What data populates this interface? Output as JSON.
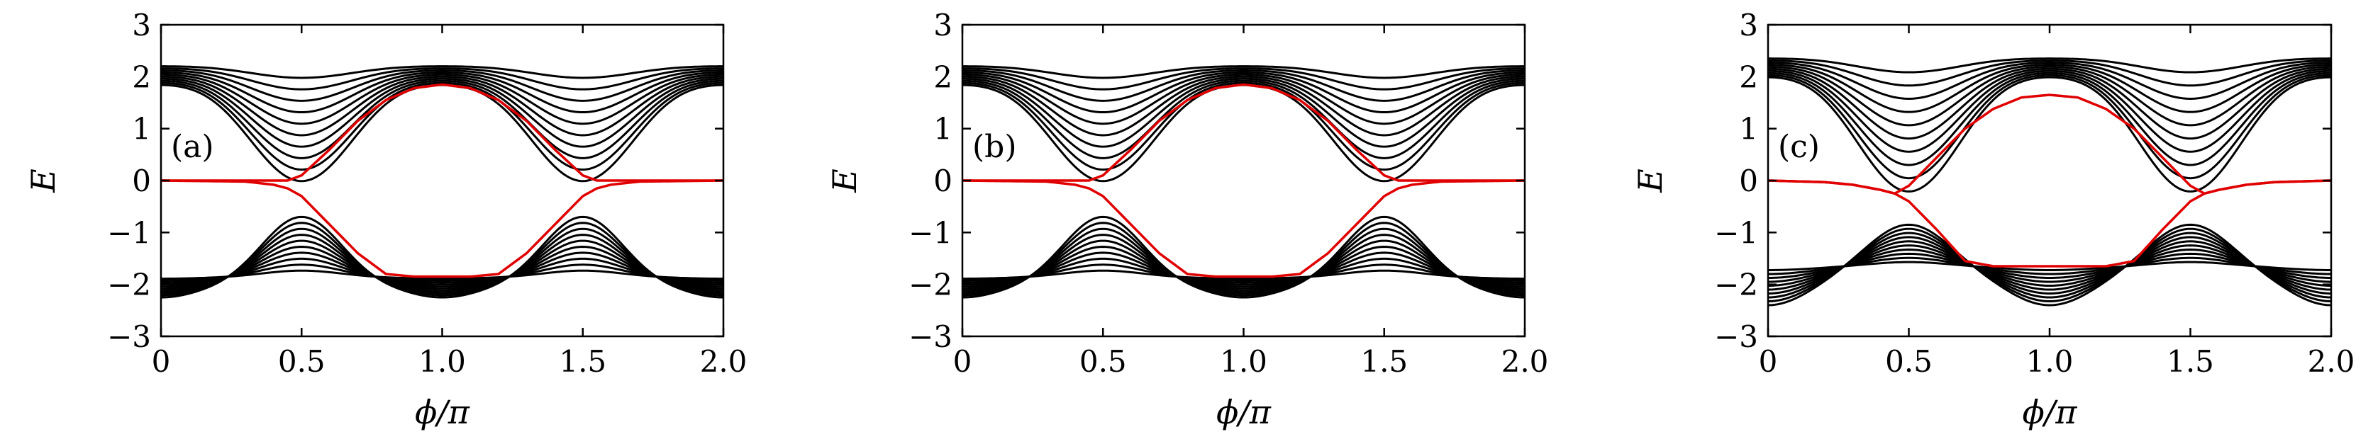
{
  "figure": {
    "panels": [
      {
        "label": "(a)",
        "xlabel": "ϕ/π",
        "ylabel": "E"
      },
      {
        "label": "(b)",
        "xlabel": "ϕ/π",
        "ylabel": "E"
      },
      {
        "label": "(c)",
        "xlabel": "ϕ/π",
        "ylabel": "E"
      }
    ]
  },
  "chart_data": [
    {
      "type": "line",
      "panel_label": "(a)",
      "xlabel": "ϕ/π",
      "ylabel": "E",
      "xlim": [
        0,
        2
      ],
      "ylim": [
        -3,
        3
      ],
      "xticks": [
        "0",
        "0.5",
        "1.0",
        "1.5",
        "2.0"
      ],
      "yticks": [
        "3",
        "2",
        "1",
        "0",
        "−1",
        "−2",
        "−3"
      ],
      "colors": {
        "bands": "#000000",
        "edge_states": "#e00000"
      },
      "upper_bands": {
        "count": 10,
        "top_energy": 2.2,
        "min_energy_at_0.5": 0.35,
        "energy_at_1.0": 1.85
      },
      "lower_bands": {
        "count": 10,
        "flat_energy": -1.85,
        "max_energy_at_0.5": -0.7,
        "bottom_energy_at_1.0": -2.25
      },
      "edge_states": {
        "x": [
          0,
          0.3,
          0.4,
          0.45,
          0.5,
          0.6,
          0.7,
          0.8,
          0.9,
          1.0,
          1.1,
          1.2,
          1.3,
          1.4,
          1.5,
          1.55,
          1.6,
          1.7,
          2.0
        ],
        "upper": [
          0,
          0,
          0,
          0,
          0.1,
          0.6,
          1.15,
          1.55,
          1.78,
          1.85,
          1.78,
          1.55,
          1.15,
          0.6,
          0.1,
          0,
          0,
          0,
          0
        ],
        "lower": [
          0,
          -0.02,
          -0.08,
          -0.15,
          -0.3,
          -0.85,
          -1.4,
          -1.8,
          -1.85,
          -1.85,
          -1.85,
          -1.8,
          -1.4,
          -0.85,
          -0.3,
          -0.15,
          -0.08,
          -0.02,
          0
        ]
      }
    },
    {
      "type": "line",
      "panel_label": "(b)",
      "xlabel": "ϕ/π",
      "ylabel": "E",
      "xlim": [
        0,
        2
      ],
      "ylim": [
        -3,
        3
      ],
      "xticks": [
        "0",
        "0.5",
        "1.0",
        "1.5",
        "2.0"
      ],
      "yticks": [
        "3",
        "2",
        "1",
        "0",
        "−1",
        "−2",
        "−3"
      ],
      "colors": {
        "bands": "#000000",
        "edge_states": "#e00000"
      },
      "upper_bands": {
        "count": 10,
        "top_energy": 2.2,
        "min_energy_at_0.5": 0.35,
        "energy_at_1.0": 1.85
      },
      "lower_bands": {
        "count": 10,
        "flat_energy": -1.85,
        "max_energy_at_0.5": -0.7,
        "bottom_energy_at_1.0": -2.25
      },
      "edge_states": {
        "x": [
          0,
          0.3,
          0.4,
          0.45,
          0.5,
          0.6,
          0.7,
          0.8,
          0.9,
          1.0,
          1.1,
          1.2,
          1.3,
          1.4,
          1.5,
          1.55,
          1.6,
          1.7,
          2.0
        ],
        "upper": [
          0,
          0,
          0,
          0,
          0.1,
          0.6,
          1.15,
          1.55,
          1.78,
          1.85,
          1.78,
          1.55,
          1.15,
          0.6,
          0.1,
          0,
          0,
          0,
          0
        ],
        "lower": [
          0,
          -0.02,
          -0.08,
          -0.15,
          -0.3,
          -0.85,
          -1.4,
          -1.8,
          -1.85,
          -1.85,
          -1.85,
          -1.8,
          -1.4,
          -0.85,
          -0.3,
          -0.15,
          -0.08,
          -0.02,
          0
        ]
      }
    },
    {
      "type": "line",
      "panel_label": "(c)",
      "xlabel": "ϕ/π",
      "ylabel": "E",
      "xlim": [
        0,
        2
      ],
      "ylim": [
        -3,
        3
      ],
      "xticks": [
        "0",
        "0.5",
        "1.0",
        "1.5",
        "2.0"
      ],
      "yticks": [
        "3",
        "2",
        "1",
        "0",
        "−1",
        "−2",
        "−3"
      ],
      "colors": {
        "bands": "#000000",
        "edge_states": "#e00000"
      },
      "upper_bands": {
        "count": 10,
        "top_energy": 2.35,
        "min_energy_at_0.5": 0.15,
        "energy_at_1.0": 1.65
      },
      "lower_bands": {
        "count": 10,
        "flat_energy": -1.65,
        "max_energy_at_0.5": -0.85,
        "bottom_energy_at_1.0": -2.4
      },
      "edge_states": {
        "x": [
          0,
          0.2,
          0.3,
          0.4,
          0.45,
          0.5,
          0.6,
          0.7,
          0.8,
          0.9,
          1.0,
          1.1,
          1.2,
          1.3,
          1.4,
          1.5,
          1.55,
          1.6,
          1.7,
          1.8,
          2.0
        ],
        "upper": [
          0,
          -0.03,
          -0.08,
          -0.18,
          -0.25,
          -0.1,
          0.45,
          1.0,
          1.38,
          1.6,
          1.65,
          1.6,
          1.38,
          1.0,
          0.45,
          -0.1,
          -0.25,
          -0.18,
          -0.08,
          -0.03,
          0
        ],
        "lower": [
          0,
          -0.03,
          -0.08,
          -0.18,
          -0.25,
          -0.4,
          -0.95,
          -1.55,
          -1.65,
          -1.65,
          -1.65,
          -1.65,
          -1.65,
          -1.55,
          -0.95,
          -0.4,
          -0.25,
          -0.18,
          -0.08,
          -0.03,
          0
        ]
      }
    }
  ]
}
